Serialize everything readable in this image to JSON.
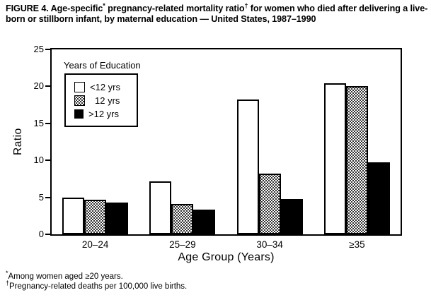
{
  "title": {
    "segments": [
      {
        "t": "FIGURE 4. Age-specific"
      },
      {
        "t": "*",
        "sup": true
      },
      {
        "t": " pregnancy-related mortality ratio"
      },
      {
        "t": "†",
        "sup": true
      },
      {
        "t": " for women who died after delivering a live-born or stillborn infant, by maternal education — United States, 1987–1990"
      }
    ]
  },
  "chart_data": {
    "type": "bar",
    "categories": [
      "20–24",
      "25–29",
      "30–34",
      "≥35"
    ],
    "series": [
      {
        "name": "<12 yrs",
        "fill": "white",
        "values": [
          5.0,
          7.2,
          18.2,
          20.4
        ]
      },
      {
        "name": "12 yrs",
        "fill": "stipple",
        "values": [
          4.7,
          4.1,
          8.2,
          20.0
        ]
      },
      {
        "name": ">12 yrs",
        "fill": "black",
        "values": [
          4.3,
          3.3,
          4.8,
          9.7
        ]
      }
    ],
    "xlabel": "Age Group (Years)",
    "ylabel": "Ratio",
    "ylim": [
      0,
      25
    ],
    "yticks": [
      0,
      5,
      10,
      15,
      20,
      25
    ],
    "legend_title": "Years of Education",
    "legend_position": "upper-left-inside",
    "grid": false,
    "colors": {
      "foreground": "#000000",
      "background": "#ffffff"
    }
  },
  "footnotes": [
    {
      "symbol": "*",
      "text": "Among women aged ≥20 years."
    },
    {
      "symbol": "†",
      "text": "Pregnancy-related deaths per 100,000 live births."
    }
  ]
}
